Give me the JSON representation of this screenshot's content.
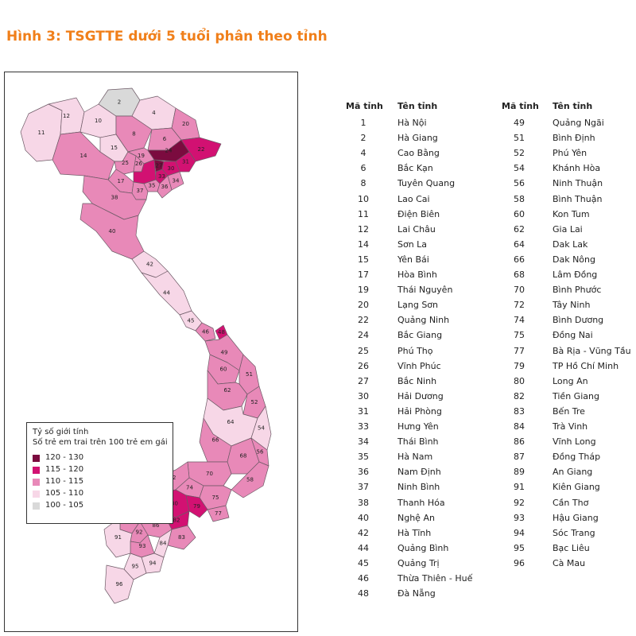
{
  "title": "Hình 3: TSGTTE dưới 5 tuổi phân theo tỉnh",
  "legend": {
    "title_line1": "Tỷ số giới tính",
    "title_line2": "Số trẻ em trai trên 100 trẻ em gái",
    "items": [
      {
        "label": "120 - 130",
        "color": "#7b0b3f"
      },
      {
        "label": "115 - 120",
        "color": "#d21172"
      },
      {
        "label": "110 - 115",
        "color": "#e889b8"
      },
      {
        "label": "105 - 110",
        "color": "#f7d7e7"
      },
      {
        "label": "100 - 105",
        "color": "#d9d9d9"
      }
    ]
  },
  "table": {
    "col_code_header": "Mã tỉnh",
    "col_name_header": "Tên tỉnh",
    "left": [
      {
        "code": "1",
        "name": "Hà Nội"
      },
      {
        "code": "2",
        "name": "Hà Giang"
      },
      {
        "code": "4",
        "name": "Cao Bằng"
      },
      {
        "code": "6",
        "name": "Bắc Kạn"
      },
      {
        "code": "8",
        "name": "Tuyên Quang"
      },
      {
        "code": "10",
        "name": "Lao Cai"
      },
      {
        "code": "11",
        "name": "Điện Biên"
      },
      {
        "code": "12",
        "name": "Lai Châu"
      },
      {
        "code": "14",
        "name": "Sơn La"
      },
      {
        "code": "15",
        "name": "Yên Bái"
      },
      {
        "code": "17",
        "name": "Hòa Bình"
      },
      {
        "code": "19",
        "name": "Thái Nguyên"
      },
      {
        "code": "20",
        "name": "Lạng Sơn"
      },
      {
        "code": "22",
        "name": "Quảng Ninh"
      },
      {
        "code": "24",
        "name": "Bắc Giang"
      },
      {
        "code": "25",
        "name": "Phú Thọ"
      },
      {
        "code": "26",
        "name": "Vĩnh Phúc"
      },
      {
        "code": "27",
        "name": "Bắc Ninh"
      },
      {
        "code": "30",
        "name": "Hải Dương"
      },
      {
        "code": "31",
        "name": "Hải Phòng"
      },
      {
        "code": "33",
        "name": "Hưng Yên"
      },
      {
        "code": "34",
        "name": "Thái Bình"
      },
      {
        "code": "35",
        "name": "Hà Nam"
      },
      {
        "code": "36",
        "name": "Nam Định"
      },
      {
        "code": "37",
        "name": "Ninh Bình"
      },
      {
        "code": "38",
        "name": "Thanh Hóa"
      },
      {
        "code": "40",
        "name": "Nghệ An"
      },
      {
        "code": "42",
        "name": "Hà Tĩnh"
      },
      {
        "code": "44",
        "name": "Quảng Bình"
      },
      {
        "code": "45",
        "name": "Quảng Trị"
      },
      {
        "code": "46",
        "name": "Thừa Thiên - Huế"
      },
      {
        "code": "48",
        "name": "Đà Nẵng"
      }
    ],
    "right": [
      {
        "code": "49",
        "name": "Quảng Ngãi"
      },
      {
        "code": "51",
        "name": "Bình Định"
      },
      {
        "code": "52",
        "name": "Phú Yên"
      },
      {
        "code": "54",
        "name": "Khánh Hòa"
      },
      {
        "code": "56",
        "name": "Ninh Thuận"
      },
      {
        "code": "58",
        "name": "Bình Thuận"
      },
      {
        "code": "60",
        "name": "Kon Tum"
      },
      {
        "code": "62",
        "name": "Gia Lai"
      },
      {
        "code": "64",
        "name": "Dak Lak"
      },
      {
        "code": "66",
        "name": "Dak Nông"
      },
      {
        "code": "68",
        "name": "Lâm Đồng"
      },
      {
        "code": "70",
        "name": "Bình Phước"
      },
      {
        "code": "72",
        "name": "Tây Ninh"
      },
      {
        "code": "74",
        "name": "Bình Dương"
      },
      {
        "code": "75",
        "name": "Đồng Nai"
      },
      {
        "code": "77",
        "name": "Bà Rịa - Vũng Tầu"
      },
      {
        "code": "79",
        "name": "TP Hồ Chí Minh"
      },
      {
        "code": "80",
        "name": "Long An"
      },
      {
        "code": "82",
        "name": "Tiền Giang"
      },
      {
        "code": "83",
        "name": "Bến Tre"
      },
      {
        "code": "84",
        "name": "Trà Vinh"
      },
      {
        "code": "86",
        "name": "Vĩnh Long"
      },
      {
        "code": "87",
        "name": "Đồng Tháp"
      },
      {
        "code": "89",
        "name": "An Giang"
      },
      {
        "code": "91",
        "name": "Kiên Giang"
      },
      {
        "code": "92",
        "name": "Cần Thơ"
      },
      {
        "code": "93",
        "name": "Hậu Giang"
      },
      {
        "code": "94",
        "name": "Sóc Trang"
      },
      {
        "code": "95",
        "name": "Bạc Liêu"
      },
      {
        "code": "96",
        "name": "Cà Mau"
      }
    ]
  },
  "map_labels": [
    "2",
    "4",
    "6",
    "8",
    "10",
    "11",
    "12",
    "14",
    "15",
    "17",
    "19",
    "20",
    "22",
    "24",
    "25",
    "26",
    "27",
    "30",
    "31",
    "33",
    "34",
    "35",
    "36",
    "37",
    "38",
    "40",
    "42",
    "44",
    "45",
    "46",
    "48",
    "49",
    "51",
    "52",
    "54",
    "56",
    "58",
    "60",
    "62",
    "64",
    "66",
    "68",
    "70",
    "72",
    "74",
    "75",
    "77",
    "79",
    "80",
    "82",
    "83",
    "84",
    "86",
    "87",
    "89",
    "91",
    "92",
    "93",
    "94",
    "95",
    "96"
  ]
}
